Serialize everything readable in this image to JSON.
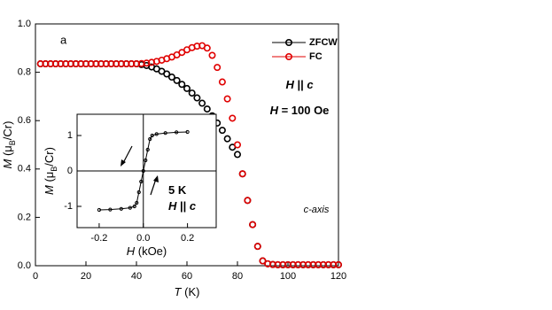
{
  "chart_data": [
    {
      "type": "scatter",
      "panel_label": "a",
      "x": [
        2,
        4,
        6,
        8,
        10,
        12,
        14,
        16,
        18,
        20,
        22,
        24,
        26,
        28,
        30,
        32,
        34,
        36,
        38,
        40,
        42,
        44,
        46,
        48,
        50,
        52,
        54,
        56,
        58,
        60,
        62,
        64,
        66,
        68,
        70,
        72,
        74,
        76,
        78,
        80,
        82,
        84,
        86,
        88,
        90,
        92,
        94,
        96,
        98,
        100,
        102,
        104,
        106,
        108,
        110,
        112,
        114,
        116,
        118,
        120
      ],
      "series": [
        {
          "name": "ZFCW",
          "color": "#000000",
          "values": [
            0.835,
            0.835,
            0.835,
            0.835,
            0.835,
            0.835,
            0.835,
            0.835,
            0.835,
            0.835,
            0.835,
            0.835,
            0.835,
            0.835,
            0.835,
            0.835,
            0.835,
            0.835,
            0.835,
            0.835,
            0.832,
            0.828,
            0.822,
            0.814,
            0.804,
            0.793,
            0.78,
            0.766,
            0.75,
            0.733,
            0.714,
            0.694,
            0.672,
            0.648,
            0.62,
            0.59,
            0.56,
            0.525,
            0.49,
            0.46,
            0.38,
            0.27,
            0.17,
            0.08,
            0.02,
            0.008,
            0.005,
            0.004,
            0.004,
            0.004,
            0.004,
            0.004,
            0.004,
            0.004,
            0.004,
            0.004,
            0.004,
            0.004,
            0.004,
            0.004
          ]
        },
        {
          "name": "FC",
          "color": "#e00000",
          "values": [
            0.835,
            0.835,
            0.835,
            0.835,
            0.835,
            0.835,
            0.835,
            0.835,
            0.835,
            0.835,
            0.835,
            0.835,
            0.835,
            0.835,
            0.835,
            0.835,
            0.835,
            0.835,
            0.835,
            0.835,
            0.836,
            0.838,
            0.841,
            0.845,
            0.85,
            0.856,
            0.863,
            0.872,
            0.882,
            0.893,
            0.902,
            0.908,
            0.91,
            0.9,
            0.87,
            0.82,
            0.76,
            0.69,
            0.61,
            0.5,
            0.38,
            0.27,
            0.17,
            0.08,
            0.02,
            0.008,
            0.005,
            0.004,
            0.004,
            0.004,
            0.004,
            0.004,
            0.004,
            0.004,
            0.004,
            0.004,
            0.004,
            0.004,
            0.004,
            0.004
          ]
        }
      ],
      "xlim": [
        0,
        120
      ],
      "ylim": [
        0,
        1
      ],
      "xticks": [
        0,
        20,
        40,
        60,
        80,
        100,
        120
      ],
      "yticks": [
        {
          "value": 0,
          "label": "0.0"
        },
        0.2,
        0.4,
        0.6,
        0.8,
        {
          "value": 1,
          "label": "1.0"
        }
      ],
      "xlabel": [
        "T",
        " (K)"
      ],
      "ylabel": [
        "M",
        " (μ",
        "B",
        "/Cr)"
      ],
      "annotations": [
        [
          "H",
          " || ",
          "c"
        ],
        [
          "H",
          " = 100 Oe"
        ]
      ],
      "legend": "upper right",
      "image_label": "c-axis"
    },
    {
      "type": "line",
      "x": [
        -0.2,
        -0.15,
        -0.1,
        -0.06,
        -0.04,
        -0.03,
        -0.02,
        -0.01,
        0,
        0.01,
        0.02,
        0.03,
        0.04,
        0.06,
        0.1,
        0.15,
        0.2
      ],
      "series": [
        {
          "color": "#000000",
          "values": [
            -1.1,
            -1.09,
            -1.07,
            -1.04,
            -1.0,
            -0.9,
            -0.6,
            -0.3,
            0.0,
            0.3,
            0.6,
            0.9,
            1.0,
            1.04,
            1.07,
            1.09,
            1.1
          ]
        }
      ],
      "xlim": [
        -0.3,
        0.33
      ],
      "ylim": [
        -1.6,
        1.6
      ],
      "xticks": [
        -0.2,
        {
          "value": 0,
          "label": "0.0"
        },
        0.2
      ],
      "yticks": [
        -1,
        0,
        1
      ],
      "xlabel": [
        "H",
        " (kOe)"
      ],
      "ylabel": [
        "M",
        " (μ",
        "B",
        "/Cr)"
      ],
      "annotations": [
        [
          "5 K"
        ],
        [
          "H",
          " || ",
          "c"
        ]
      ],
      "zero_lines": true
    }
  ]
}
